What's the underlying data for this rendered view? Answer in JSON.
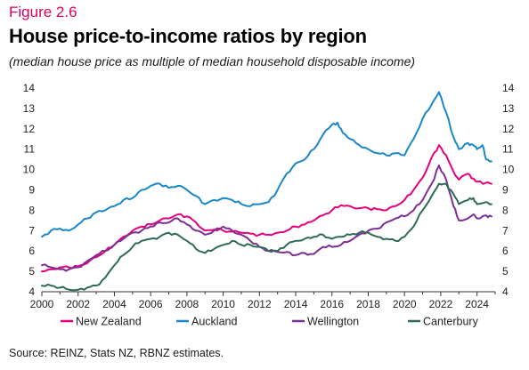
{
  "figure_label": "Figure 2.6",
  "source_note": "Source: REINZ, Stats NZ, RBNZ estimates.",
  "colors": {
    "accent": "#e0005e"
  },
  "chart_data": {
    "type": "line",
    "title": "House price-to-income ratios by region",
    "subtitle": "(median house price as multiple of median household disposable income)",
    "xlim": [
      2000,
      2025
    ],
    "ylim": [
      4,
      14
    ],
    "x_ticks": [
      2000,
      2002,
      2004,
      2006,
      2008,
      2010,
      2012,
      2014,
      2016,
      2018,
      2020,
      2022,
      2024
    ],
    "y_ticks": [
      4,
      5,
      6,
      7,
      8,
      9,
      10,
      11,
      12,
      13,
      14
    ],
    "y_axis_both_sides": true,
    "grid": false,
    "legend_position": "bottom",
    "series": [
      {
        "name": "New Zealand",
        "color": "#e6007e",
        "points": [
          [
            2000,
            5.0
          ],
          [
            2000.5,
            5.1
          ],
          [
            2001,
            5.2
          ],
          [
            2001.5,
            5.2
          ],
          [
            2002,
            5.25
          ],
          [
            2002.5,
            5.4
          ],
          [
            2003,
            5.7
          ],
          [
            2003.5,
            6.0
          ],
          [
            2004,
            6.3
          ],
          [
            2004.5,
            6.7
          ],
          [
            2005,
            7.0
          ],
          [
            2005.5,
            7.2
          ],
          [
            2006,
            7.3
          ],
          [
            2006.5,
            7.5
          ],
          [
            2007,
            7.6
          ],
          [
            2007.5,
            7.8
          ],
          [
            2008,
            7.7
          ],
          [
            2008.5,
            7.4
          ],
          [
            2009,
            7.0
          ],
          [
            2009.5,
            7.05
          ],
          [
            2010,
            7.0
          ],
          [
            2010.5,
            6.95
          ],
          [
            2011,
            6.9
          ],
          [
            2011.5,
            6.85
          ],
          [
            2012,
            6.8
          ],
          [
            2012.5,
            6.8
          ],
          [
            2013,
            6.9
          ],
          [
            2013.5,
            7.0
          ],
          [
            2014,
            7.2
          ],
          [
            2014.5,
            7.3
          ],
          [
            2015,
            7.5
          ],
          [
            2015.5,
            7.75
          ],
          [
            2016,
            8.0
          ],
          [
            2016.5,
            8.25
          ],
          [
            2017,
            8.2
          ],
          [
            2017.5,
            8.1
          ],
          [
            2018,
            8.1
          ],
          [
            2018.5,
            8.05
          ],
          [
            2019,
            8.0
          ],
          [
            2019.5,
            8.2
          ],
          [
            2020,
            8.5
          ],
          [
            2020.5,
            9.0
          ],
          [
            2021,
            9.6
          ],
          [
            2021.5,
            10.6
          ],
          [
            2021.9,
            11.2
          ],
          [
            2022.3,
            10.7
          ],
          [
            2022.7,
            9.9
          ],
          [
            2023,
            9.5
          ],
          [
            2023.5,
            9.8
          ],
          [
            2023.8,
            9.55
          ],
          [
            2024,
            9.4
          ],
          [
            2024.5,
            9.35
          ],
          [
            2024.8,
            9.3
          ]
        ]
      },
      {
        "name": "Auckland",
        "color": "#1a87c8",
        "points": [
          [
            2000,
            6.7
          ],
          [
            2000.5,
            7.0
          ],
          [
            2001,
            7.1
          ],
          [
            2001.5,
            7.0
          ],
          [
            2002,
            7.3
          ],
          [
            2002.5,
            7.6
          ],
          [
            2003,
            7.9
          ],
          [
            2003.5,
            8.0
          ],
          [
            2004,
            8.2
          ],
          [
            2004.5,
            8.5
          ],
          [
            2005,
            8.6
          ],
          [
            2005.5,
            9.0
          ],
          [
            2006,
            9.2
          ],
          [
            2006.5,
            9.3
          ],
          [
            2007,
            9.1
          ],
          [
            2007.5,
            9.2
          ],
          [
            2008,
            9.0
          ],
          [
            2008.5,
            8.7
          ],
          [
            2009,
            8.3
          ],
          [
            2009.5,
            8.5
          ],
          [
            2010,
            8.6
          ],
          [
            2010.5,
            8.5
          ],
          [
            2011,
            8.3
          ],
          [
            2011.5,
            8.2
          ],
          [
            2012,
            8.3
          ],
          [
            2012.5,
            8.4
          ],
          [
            2013,
            9.0
          ],
          [
            2013.5,
            9.8
          ],
          [
            2014,
            10.3
          ],
          [
            2014.5,
            10.5
          ],
          [
            2015,
            11.0
          ],
          [
            2015.5,
            11.7
          ],
          [
            2016,
            12.2
          ],
          [
            2016.3,
            12.3
          ],
          [
            2016.6,
            11.8
          ],
          [
            2017,
            11.5
          ],
          [
            2017.5,
            11.2
          ],
          [
            2018,
            11.0
          ],
          [
            2018.5,
            10.8
          ],
          [
            2019,
            10.7
          ],
          [
            2019.5,
            10.8
          ],
          [
            2020,
            10.7
          ],
          [
            2020.5,
            11.5
          ],
          [
            2021,
            12.5
          ],
          [
            2021.5,
            13.2
          ],
          [
            2021.9,
            13.8
          ],
          [
            2022.3,
            12.8
          ],
          [
            2022.7,
            11.6
          ],
          [
            2023,
            11.0
          ],
          [
            2023.5,
            11.3
          ],
          [
            2023.8,
            11.2
          ],
          [
            2024,
            11.0
          ],
          [
            2024.3,
            11.2
          ],
          [
            2024.5,
            10.5
          ],
          [
            2024.8,
            10.4
          ]
        ]
      },
      {
        "name": "Wellington",
        "color": "#7d2e94",
        "points": [
          [
            2000,
            5.3
          ],
          [
            2000.5,
            5.2
          ],
          [
            2001,
            5.1
          ],
          [
            2001.5,
            5.1
          ],
          [
            2002,
            5.2
          ],
          [
            2002.5,
            5.5
          ],
          [
            2003,
            5.8
          ],
          [
            2003.5,
            6.0
          ],
          [
            2004,
            6.3
          ],
          [
            2004.5,
            6.6
          ],
          [
            2005,
            6.9
          ],
          [
            2005.5,
            7.0
          ],
          [
            2006,
            7.2
          ],
          [
            2006.5,
            7.4
          ],
          [
            2007,
            7.4
          ],
          [
            2007.5,
            7.6
          ],
          [
            2008,
            7.3
          ],
          [
            2008.5,
            7.0
          ],
          [
            2009,
            6.8
          ],
          [
            2009.5,
            7.0
          ],
          [
            2010,
            7.2
          ],
          [
            2010.5,
            7.0
          ],
          [
            2011,
            6.8
          ],
          [
            2011.5,
            6.5
          ],
          [
            2012,
            6.2
          ],
          [
            2012.5,
            6.0
          ],
          [
            2013,
            5.95
          ],
          [
            2013.5,
            5.95
          ],
          [
            2014,
            5.8
          ],
          [
            2014.5,
            5.9
          ],
          [
            2015,
            5.85
          ],
          [
            2015.5,
            6.2
          ],
          [
            2016,
            6.2
          ],
          [
            2016.5,
            6.3
          ],
          [
            2017,
            6.5
          ],
          [
            2017.5,
            6.8
          ],
          [
            2018,
            7.0
          ],
          [
            2018.5,
            7.1
          ],
          [
            2019,
            7.4
          ],
          [
            2019.5,
            7.6
          ],
          [
            2020,
            7.7
          ],
          [
            2020.5,
            8.0
          ],
          [
            2021,
            8.5
          ],
          [
            2021.5,
            9.3
          ],
          [
            2021.9,
            10.2
          ],
          [
            2022.3,
            9.5
          ],
          [
            2022.7,
            8.2
          ],
          [
            2023,
            7.5
          ],
          [
            2023.5,
            7.6
          ],
          [
            2023.8,
            7.8
          ],
          [
            2024,
            7.6
          ],
          [
            2024.5,
            7.75
          ],
          [
            2024.8,
            7.7
          ]
        ]
      },
      {
        "name": "Canterbury",
        "color": "#2e6b55",
        "points": [
          [
            2000,
            4.3
          ],
          [
            2000.5,
            4.3
          ],
          [
            2001,
            4.2
          ],
          [
            2001.5,
            4.1
          ],
          [
            2002,
            4.1
          ],
          [
            2002.5,
            4.2
          ],
          [
            2003,
            4.3
          ],
          [
            2003.5,
            4.7
          ],
          [
            2004,
            5.3
          ],
          [
            2004.5,
            5.8
          ],
          [
            2005,
            6.2
          ],
          [
            2005.5,
            6.5
          ],
          [
            2006,
            6.6
          ],
          [
            2006.5,
            6.7
          ],
          [
            2007,
            6.9
          ],
          [
            2007.5,
            6.8
          ],
          [
            2008,
            6.5
          ],
          [
            2008.5,
            6.1
          ],
          [
            2009,
            5.9
          ],
          [
            2009.5,
            6.1
          ],
          [
            2010,
            6.3
          ],
          [
            2010.5,
            6.5
          ],
          [
            2011,
            6.3
          ],
          [
            2011.5,
            6.3
          ],
          [
            2012,
            6.2
          ],
          [
            2012.5,
            6.0
          ],
          [
            2013,
            6.0
          ],
          [
            2013.5,
            6.3
          ],
          [
            2014,
            6.5
          ],
          [
            2014.5,
            6.6
          ],
          [
            2015,
            6.7
          ],
          [
            2015.5,
            6.8
          ],
          [
            2016,
            6.6
          ],
          [
            2016.5,
            6.7
          ],
          [
            2017,
            6.8
          ],
          [
            2017.5,
            6.9
          ],
          [
            2018,
            6.9
          ],
          [
            2018.5,
            6.7
          ],
          [
            2019,
            6.6
          ],
          [
            2019.5,
            6.5
          ],
          [
            2020,
            6.7
          ],
          [
            2020.5,
            7.2
          ],
          [
            2021,
            8.0
          ],
          [
            2021.5,
            8.7
          ],
          [
            2021.9,
            9.3
          ],
          [
            2022.3,
            9.3
          ],
          [
            2022.7,
            8.8
          ],
          [
            2023,
            8.3
          ],
          [
            2023.5,
            8.5
          ],
          [
            2023.8,
            8.6
          ],
          [
            2024,
            8.3
          ],
          [
            2024.5,
            8.4
          ],
          [
            2024.8,
            8.3
          ]
        ]
      }
    ]
  }
}
